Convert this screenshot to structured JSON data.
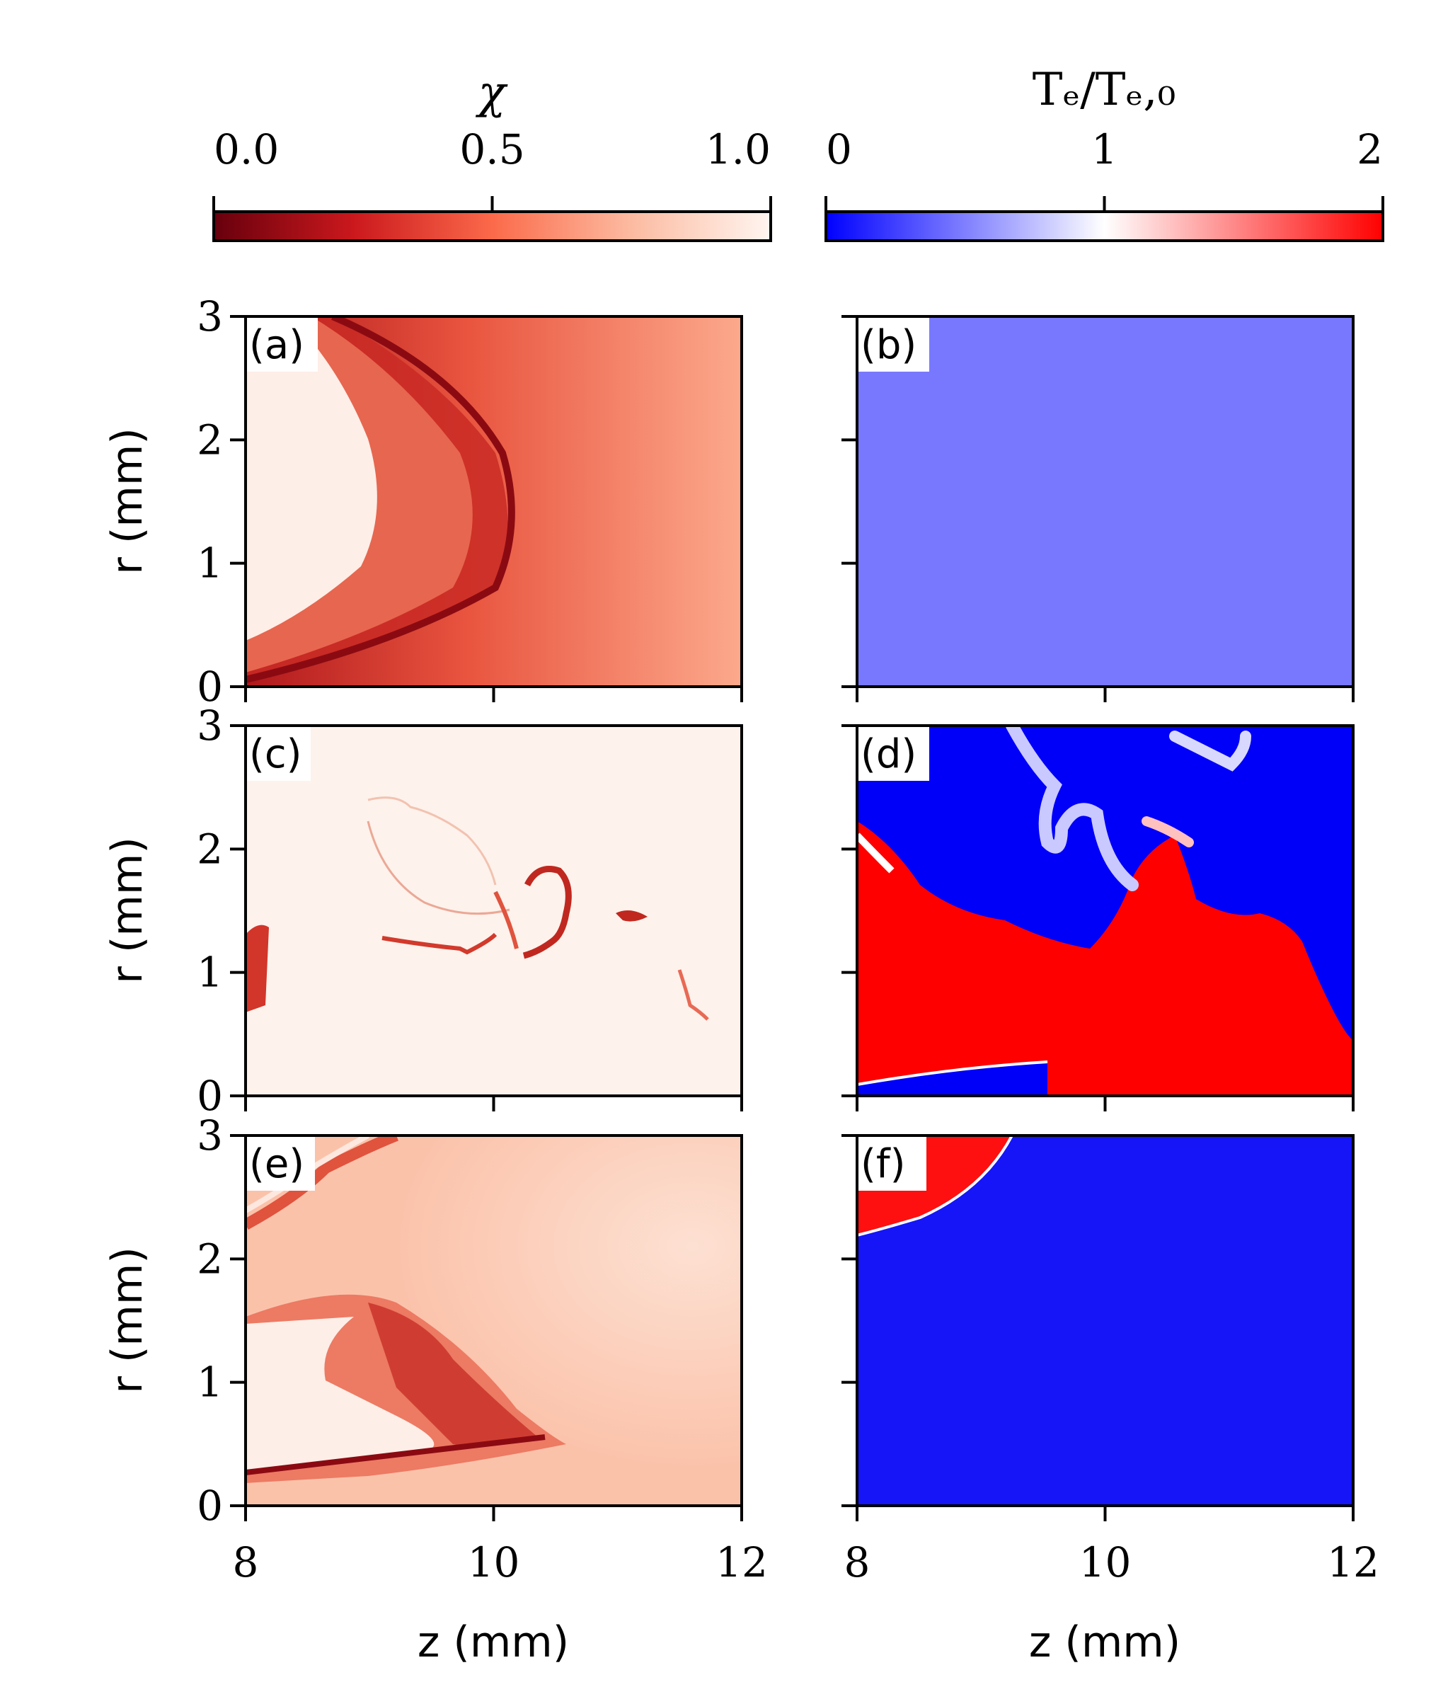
{
  "chart_data": {
    "type": "heatmap",
    "colorbars": [
      {
        "title": "χ",
        "ticks": [
          "0.0",
          "0.5",
          "1.0"
        ],
        "range": [
          0,
          1
        ],
        "colormap": "Reds_r"
      },
      {
        "title": "Tₑ/Tₑ,₀",
        "ticks": [
          "0",
          "1",
          "2"
        ],
        "range": [
          0,
          2
        ],
        "colormap": "bwr"
      }
    ],
    "xlabel": "z (mm)",
    "ylabel": "r (mm)",
    "xlim": [
      8,
      12
    ],
    "ylim": [
      0,
      3
    ],
    "xticks": [
      "8",
      "10",
      "12"
    ],
    "yticks": [
      "0",
      "1",
      "2",
      "3"
    ],
    "panels": [
      {
        "label": "(a)",
        "field": "χ"
      },
      {
        "label": "(b)",
        "field": "Tₑ/Tₑ,₀"
      },
      {
        "label": "(c)",
        "field": "χ"
      },
      {
        "label": "(d)",
        "field": "Tₑ/Tₑ,₀"
      },
      {
        "label": "(e)",
        "field": "χ"
      },
      {
        "label": "(f)",
        "field": "Tₑ/Tₑ,₀"
      }
    ]
  }
}
